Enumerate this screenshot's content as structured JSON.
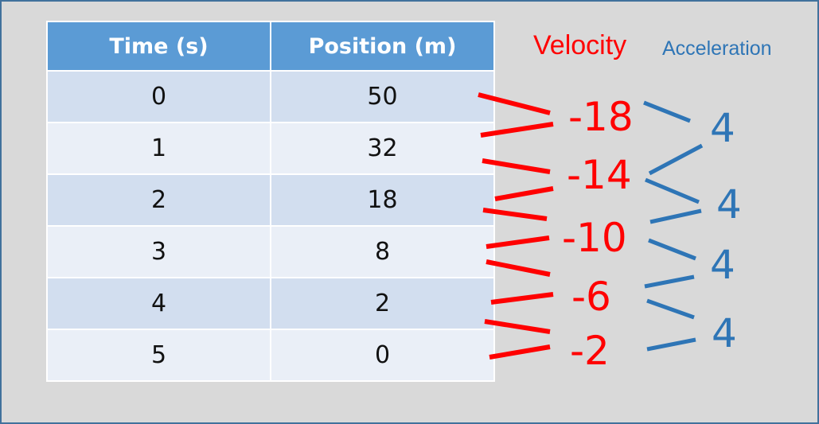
{
  "colors": {
    "velocity": "#ff0000",
    "acceleration": "#2e75b6",
    "header_bg": "#5b9bd5"
  },
  "table": {
    "headers": [
      "Time (s)",
      "Position (m)"
    ],
    "rows": [
      [
        "0",
        "50"
      ],
      [
        "1",
        "32"
      ],
      [
        "2",
        "18"
      ],
      [
        "3",
        "8"
      ],
      [
        "4",
        "2"
      ],
      [
        "5",
        "0"
      ]
    ]
  },
  "velocity": {
    "label": "Velocity",
    "values": [
      "-18",
      "-14",
      "-10",
      "-6",
      "-2"
    ]
  },
  "acceleration": {
    "label": "Acceleration",
    "values": [
      "4",
      "4",
      "4",
      "4"
    ]
  }
}
